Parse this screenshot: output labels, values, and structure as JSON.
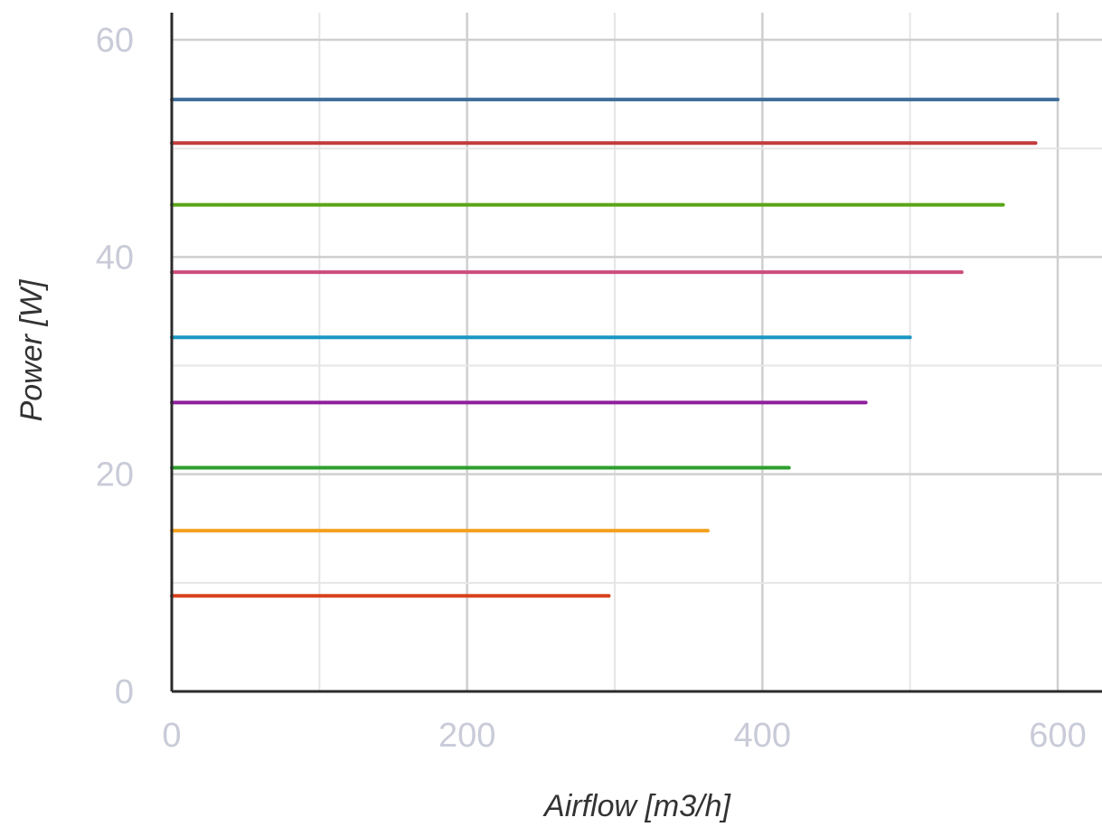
{
  "chart_data": {
    "type": "line",
    "title": "",
    "xlabel": "Airflow [m3/h]",
    "ylabel": "Power [W]",
    "xlim": [
      0,
      630
    ],
    "ylim": [
      0,
      62.5
    ],
    "x_ticks": [
      "0",
      "200",
      "400",
      "600"
    ],
    "y_ticks": [
      "0",
      "20",
      "40",
      "60"
    ],
    "grid": true,
    "legend": "none",
    "series": [
      {
        "color": "#3f6e9c",
        "x": [
          0,
          600
        ],
        "y": [
          54.5,
          54.5
        ]
      },
      {
        "color": "#c23b3b",
        "x": [
          0,
          585
        ],
        "y": [
          50.5,
          50.5
        ]
      },
      {
        "color": "#5aa516",
        "x": [
          0,
          563
        ],
        "y": [
          44.8,
          44.8
        ]
      },
      {
        "color": "#cc4c7c",
        "x": [
          0,
          535
        ],
        "y": [
          38.6,
          38.6
        ]
      },
      {
        "color": "#1a96c4",
        "x": [
          0,
          500
        ],
        "y": [
          32.6,
          32.6
        ]
      },
      {
        "color": "#8e1f9c",
        "x": [
          0,
          470
        ],
        "y": [
          26.6,
          26.6
        ]
      },
      {
        "color": "#2e9f2e",
        "x": [
          0,
          418
        ],
        "y": [
          20.6,
          20.6
        ]
      },
      {
        "color": "#f4a11e",
        "x": [
          0,
          363
        ],
        "y": [
          14.8,
          14.8
        ]
      },
      {
        "color": "#d9411c",
        "x": [
          0,
          296
        ],
        "y": [
          8.8,
          8.8
        ]
      }
    ]
  }
}
